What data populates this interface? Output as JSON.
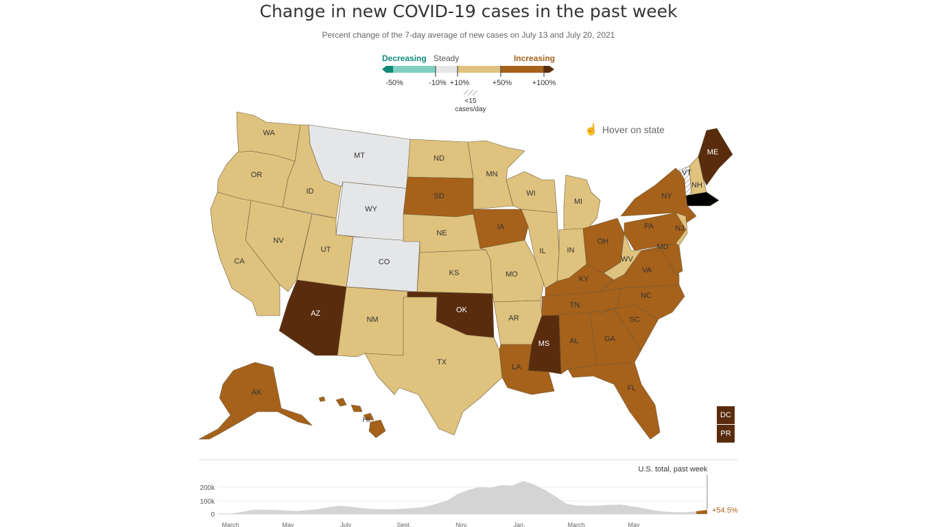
{
  "title": "Change in new COVID-19 cases in the past week",
  "subtitle": "Percent change of the 7-day average of new cases on July 13 and July 20, 2021",
  "legend": {
    "decreasing": "Decreasing",
    "steady": "Steady",
    "increasing": "Increasing",
    "ticks": [
      "-50%",
      "-10%",
      "+10%",
      "+50%",
      "+100%"
    ],
    "lowcase_line1": "<15",
    "lowcase_line2": "cases/day",
    "colors": {
      "decreasing_dark": "#0e8a77",
      "decreasing_light": "#7fcfc0",
      "steady": "#e5e6e8",
      "moderate": "#dfc27d",
      "high": "#a6611a",
      "very_high": "#5a2c0e"
    }
  },
  "hover_hint": "Hover on state",
  "hover_icon": "hand-pointer-icon",
  "states": [
    {
      "abbr": "WA",
      "level": "moderate"
    },
    {
      "abbr": "OR",
      "level": "moderate"
    },
    {
      "abbr": "CA",
      "level": "moderate"
    },
    {
      "abbr": "ID",
      "level": "moderate"
    },
    {
      "abbr": "NV",
      "level": "moderate"
    },
    {
      "abbr": "MT",
      "level": "steady"
    },
    {
      "abbr": "WY",
      "level": "steady"
    },
    {
      "abbr": "UT",
      "level": "moderate"
    },
    {
      "abbr": "CO",
      "level": "steady"
    },
    {
      "abbr": "AZ",
      "level": "very_high"
    },
    {
      "abbr": "NM",
      "level": "moderate"
    },
    {
      "abbr": "ND",
      "level": "moderate"
    },
    {
      "abbr": "SD",
      "level": "high"
    },
    {
      "abbr": "NE",
      "level": "moderate"
    },
    {
      "abbr": "KS",
      "level": "moderate"
    },
    {
      "abbr": "OK",
      "level": "very_high"
    },
    {
      "abbr": "TX",
      "level": "moderate"
    },
    {
      "abbr": "MN",
      "level": "moderate"
    },
    {
      "abbr": "IA",
      "level": "high"
    },
    {
      "abbr": "MO",
      "level": "moderate"
    },
    {
      "abbr": "AR",
      "level": "moderate"
    },
    {
      "abbr": "LA",
      "level": "high"
    },
    {
      "abbr": "WI",
      "level": "moderate"
    },
    {
      "abbr": "IL",
      "level": "moderate"
    },
    {
      "abbr": "MS",
      "level": "very_high"
    },
    {
      "abbr": "MI",
      "level": "moderate"
    },
    {
      "abbr": "IN",
      "level": "moderate"
    },
    {
      "abbr": "OH",
      "level": "high"
    },
    {
      "abbr": "KY",
      "level": "high"
    },
    {
      "abbr": "TN",
      "level": "high"
    },
    {
      "abbr": "AL",
      "level": "high"
    },
    {
      "abbr": "GA",
      "level": "high"
    },
    {
      "abbr": "FL",
      "level": "high"
    },
    {
      "abbr": "SC",
      "level": "high"
    },
    {
      "abbr": "NC",
      "level": "high"
    },
    {
      "abbr": "VA",
      "level": "high"
    },
    {
      "abbr": "WV",
      "level": "moderate"
    },
    {
      "abbr": "PA",
      "level": "high"
    },
    {
      "abbr": "NY",
      "level": "high"
    },
    {
      "abbr": "NJ",
      "level": "moderate"
    },
    {
      "abbr": "MD",
      "level": "high"
    },
    {
      "abbr": "VT",
      "level": "lowcase"
    },
    {
      "abbr": "NH",
      "level": "moderate"
    },
    {
      "abbr": "ME",
      "level": "very_high"
    },
    {
      "abbr": "AK",
      "level": "high"
    },
    {
      "abbr": "HI",
      "level": "high"
    },
    {
      "abbr": "DC",
      "level": "very_high"
    },
    {
      "abbr": "PR",
      "level": "very_high"
    }
  ],
  "chart_data": {
    "type": "area",
    "ylabel": "",
    "yticks": [
      "200k",
      "100k",
      "0"
    ],
    "ylim": [
      0,
      250000
    ],
    "xticks": [
      "March",
      "May",
      "July",
      "Sept.",
      "Nov.",
      "Jan.",
      "March",
      "May"
    ],
    "annotation": "U.S. total, past week",
    "change_label": "+54.5%",
    "series": [
      {
        "values": [
          2000,
          15000,
          30000,
          32000,
          30000,
          26000,
          22000,
          28000,
          35000,
          50000,
          60000,
          55000,
          45000,
          38000,
          34000,
          35000,
          40000,
          45000,
          55000,
          75000,
          100000,
          150000,
          180000,
          200000,
          195000,
          215000,
          210000,
          245000,
          220000,
          180000,
          130000,
          75000,
          62000,
          60000,
          64000,
          68000,
          70000,
          58000,
          45000,
          28000,
          18000,
          13000,
          12000,
          20000,
          30000
        ]
      }
    ]
  }
}
